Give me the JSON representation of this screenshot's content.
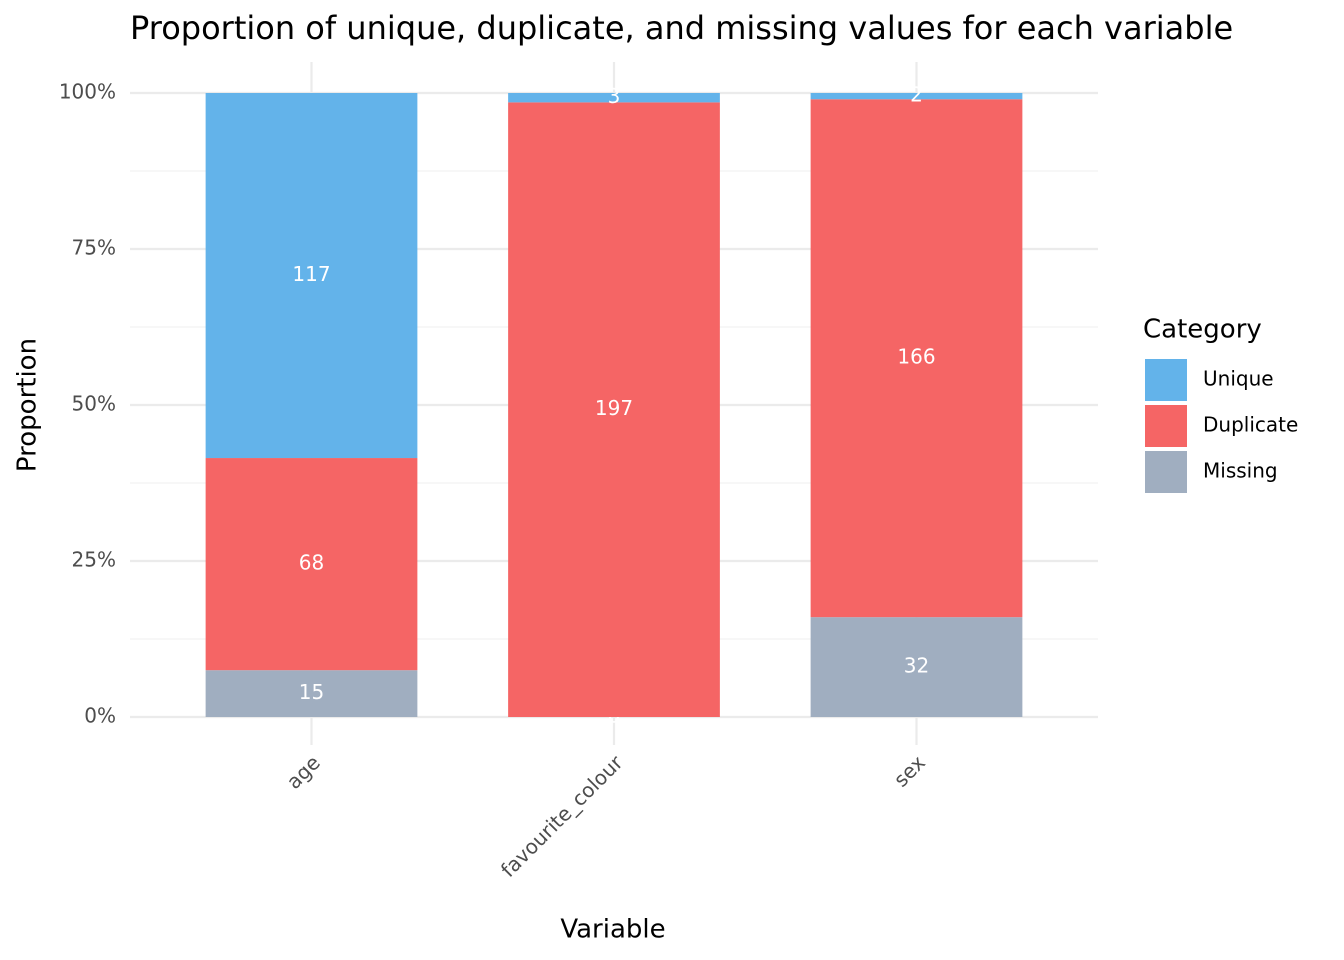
{
  "chart_data": {
    "type": "bar",
    "stacking": "percent",
    "title": "Proportion of unique, duplicate, and missing values for each variable",
    "x_label": "Variable",
    "y_label": "Proportion",
    "categories": [
      "age",
      "favourite_colour",
      "sex"
    ],
    "series": [
      {
        "name": "Unique",
        "color": "#63b3ea",
        "values": [
          117,
          3,
          2
        ]
      },
      {
        "name": "Duplicate",
        "color": "#f56565",
        "values": [
          68,
          197,
          166
        ]
      },
      {
        "name": "Missing",
        "color": "#a0aec0",
        "values": [
          15,
          0,
          32
        ]
      }
    ],
    "ylim": [
      0,
      1
    ],
    "yticks": [
      {
        "value": 0,
        "label": "0%"
      },
      {
        "value": 0.25,
        "label": "25%"
      },
      {
        "value": 0.5,
        "label": "50%"
      },
      {
        "value": 0.75,
        "label": "75%"
      },
      {
        "value": 1,
        "label": "100%"
      }
    ],
    "grid": true,
    "legend_title": "Category",
    "legend": "right"
  }
}
